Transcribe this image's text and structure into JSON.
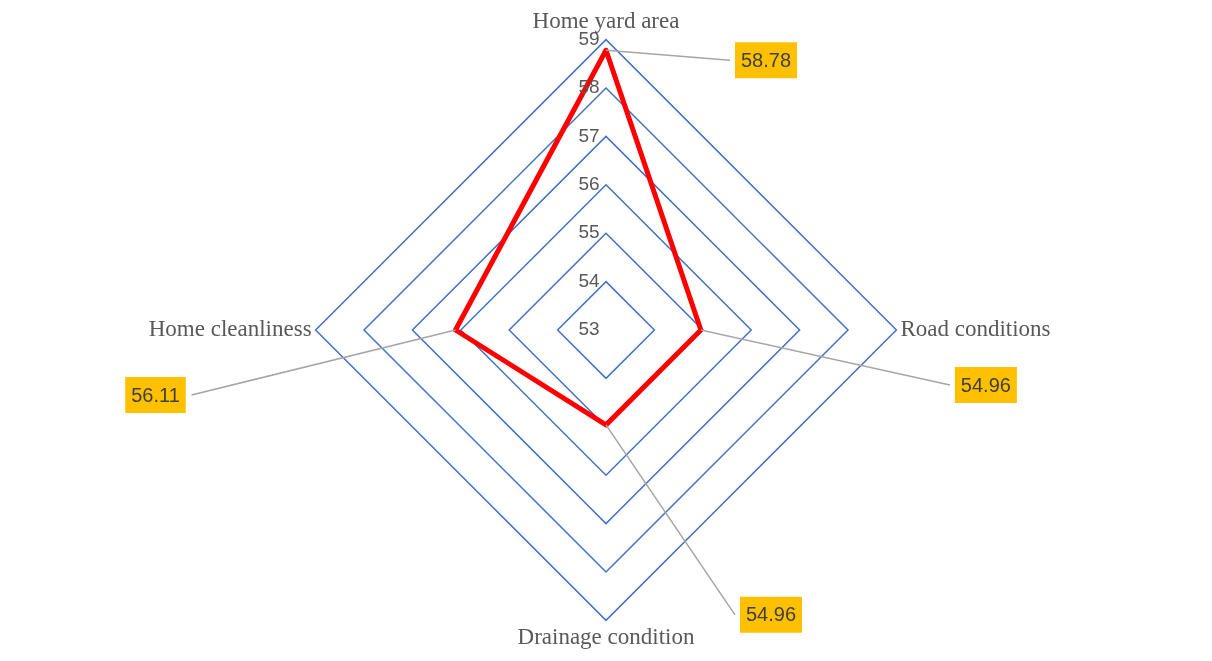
{
  "chart_data": {
    "type": "radar",
    "categories": [
      "Home yard area",
      "Road conditions",
      "Drainage condition",
      "Home cleanliness"
    ],
    "series": [
      {
        "color": "#ff0000",
        "values": [
          58.78,
          54.96,
          54.96,
          56.11
        ],
        "value_labels": [
          "58.78",
          "54.96",
          "54.96",
          "56.11"
        ]
      }
    ],
    "ylim": [
      53,
      59
    ],
    "yticks": [
      53,
      54,
      55,
      56,
      57,
      58,
      59
    ],
    "grid": true,
    "legend": false,
    "marker": "none"
  }
}
